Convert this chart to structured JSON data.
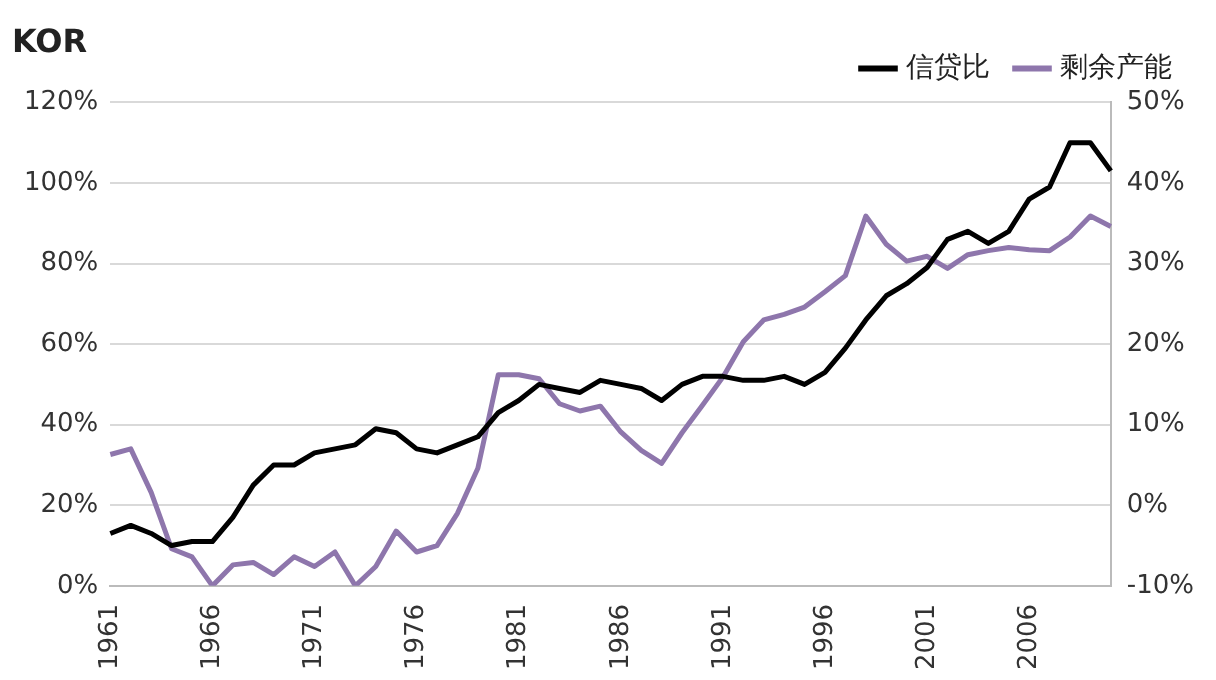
{
  "chart_data": {
    "type": "line",
    "title": "KOR",
    "categories": [
      "1961",
      null,
      null,
      null,
      null,
      "1966",
      null,
      null,
      null,
      null,
      "1971",
      null,
      null,
      null,
      null,
      "1976",
      null,
      null,
      null,
      null,
      "1981",
      null,
      null,
      null,
      null,
      "1986",
      null,
      null,
      null,
      null,
      "1991",
      null,
      null,
      null,
      null,
      "1996",
      null,
      null,
      null,
      null,
      "2001",
      null,
      null,
      null,
      null,
      "2006",
      null,
      null,
      null,
      null
    ],
    "series": [
      {
        "name": "信贷比",
        "color": "#000000",
        "values": [
          13,
          15,
          13,
          10,
          11,
          11,
          17,
          25,
          30,
          30,
          33,
          34,
          35,
          39,
          38,
          34,
          33,
          35,
          37,
          43,
          46,
          50,
          49,
          48,
          51,
          50,
          49,
          46,
          50,
          52,
          52,
          51,
          51,
          52,
          50,
          53,
          59,
          66,
          72,
          75,
          79,
          86,
          88,
          85,
          88,
          96,
          99,
          110,
          110,
          103
        ]
      },
      {
        "name": "剩余产能",
        "color": "#8e76ac",
        "axis": "y2",
        "values": [
          6.3,
          7,
          1.6,
          -5.4,
          -6.4,
          -10,
          -7.4,
          -7.1,
          -8.6,
          -6.4,
          -7.6,
          -5.8,
          -10,
          -7.6,
          -3.2,
          -5.8,
          -5,
          -1,
          4.6,
          16.2,
          16.2,
          15.7,
          12.6,
          11.7,
          12.3,
          9.1,
          6.8,
          5.2,
          9,
          12.4,
          15.9,
          20.3,
          23,
          23.7,
          24.6,
          26.5,
          28.5,
          35.9,
          32.4,
          30.3,
          30.9,
          29.4,
          31.1,
          31.6,
          32,
          31.7,
          31.6,
          33.3,
          35.9,
          34.6
        ]
      }
    ],
    "ylim": [
      0,
      120
    ],
    "yticks": [
      {
        "value": 0,
        "label": "0%"
      },
      {
        "value": 20,
        "label": "20%"
      },
      {
        "value": 40,
        "label": "40%"
      },
      {
        "value": 60,
        "label": "60%"
      },
      {
        "value": 80,
        "label": "80%"
      },
      {
        "value": 100,
        "label": "100%"
      },
      {
        "value": 120,
        "label": "120%"
      }
    ],
    "y2lim": [
      -10,
      50
    ],
    "y2ticks": [
      {
        "value": -10,
        "label": "-10%"
      },
      {
        "value": 0,
        "label": "0%"
      },
      {
        "value": 10,
        "label": "10%"
      },
      {
        "value": 20,
        "label": "20%"
      },
      {
        "value": 30,
        "label": "30%"
      },
      {
        "value": 40,
        "label": "40%"
      },
      {
        "value": 50,
        "label": "50%"
      }
    ],
    "grid": "y",
    "legend": "top right",
    "marker": "none",
    "line_style": "solid"
  }
}
